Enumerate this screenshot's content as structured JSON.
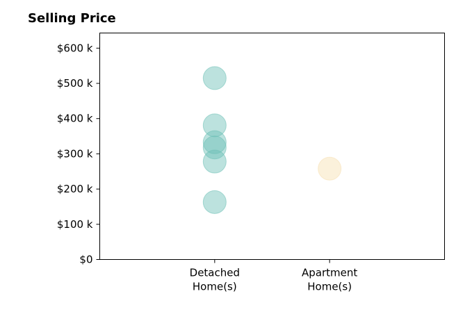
{
  "chart_data": {
    "type": "scatter",
    "title": "Selling Price",
    "xlabel": "",
    "ylabel": "",
    "categories": [
      {
        "line1": "Detached",
        "line2": "Home(s)"
      },
      {
        "line1": "Apartment",
        "line2": "Home(s)"
      }
    ],
    "yticks": [
      {
        "value": 0,
        "label": "$0"
      },
      {
        "value": 100000,
        "label": "$100 k"
      },
      {
        "value": 200000,
        "label": "$200 k"
      },
      {
        "value": 300000,
        "label": "$300 k"
      },
      {
        "value": 400000,
        "label": "$400 k"
      },
      {
        "value": 500000,
        "label": "$500 k"
      },
      {
        "value": 600000,
        "label": "$600 k"
      }
    ],
    "ylim": [
      0,
      643000
    ],
    "xlim": [
      0,
      3
    ],
    "grid": false,
    "series": [
      {
        "category_index": 0,
        "color": "#6bbfb5",
        "points": [
          515000,
          381000,
          333000,
          318000,
          278000,
          163000
        ]
      },
      {
        "category_index": 1,
        "color": "#f6dfb0",
        "points": [
          258000
        ]
      }
    ]
  }
}
